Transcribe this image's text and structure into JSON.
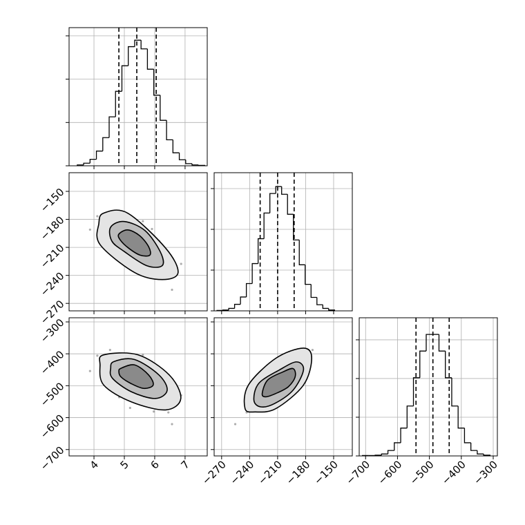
{
  "chart_data": {
    "type": "corner",
    "params": [
      {
        "lim": [
          3.18,
          7.73
        ],
        "ticks": [
          4,
          5,
          6,
          7
        ]
      },
      {
        "lim": [
          -278,
          -130
        ],
        "ticks": [
          {
            "value": -270,
            "label": "−270"
          },
          {
            "value": -240,
            "label": "−240"
          },
          {
            "value": -210,
            "label": "−210"
          },
          {
            "value": -180,
            "label": "−180"
          },
          {
            "value": -150,
            "label": "−150"
          }
        ]
      },
      {
        "lim": [
          -720,
          -287
        ],
        "ticks": [
          {
            "value": -700,
            "label": "−700"
          },
          {
            "value": -600,
            "label": "−600"
          },
          {
            "value": -500,
            "label": "−500"
          },
          {
            "value": -400,
            "label": "−400"
          },
          {
            "value": -300,
            "label": "−300"
          }
        ]
      }
    ],
    "samples": [
      [
        5.55,
        4.77,
        6.27,
        5.25,
        5.85,
        4.35,
        5.97,
        5.07,
        6.63,
        5.49,
        4.65,
        6.09,
        5.31,
        5.73,
        4.11,
        6.45,
        4.95,
        5.61,
        4.53,
        6.87,
        5.19,
        6.15,
        4.89,
        5.79,
        3.87,
        5.43,
        6.57,
        4.83,
        5.91,
        5.37
      ],
      [
        -218.4,
        -192.8,
        -212.6,
        -223.0,
        -215.1,
        -195.3,
        -240.3,
        -186.7,
        -227.7,
        -185.6,
        -209.4,
        -223.8,
        -201.1,
        -227.4,
        -176.6,
        -243.2,
        -201.8,
        -182.0,
        -172.6,
        -227.7,
        -233.5,
        -203.2,
        -187.8,
        -206.8,
        -191.0,
        -213.3,
        -255.4,
        -221.2,
        -190.3,
        -219.4
      ],
      [
        -517.7,
        -447.9,
        -490.4,
        -536.2,
        -503.7,
        -461.2,
        -580.9,
        -424.9,
        -533.0,
        -416.1,
        -501.2,
        -527.6,
        -466.8,
        -543.5,
        -405.8,
        -583.7,
        -473.7,
        -403.3,
        -388.0,
        -529.9,
        -569.6,
        -462.7,
        -430.6,
        -478.6,
        -453.9,
        -503.5,
        -620.4,
        -536.0,
        -425.3,
        -523.4
      ]
    ],
    "histograms": [
      {
        "bins": [
          3.45,
          3.66,
          3.87,
          4.08,
          4.29,
          4.5,
          4.71,
          4.92,
          5.13,
          5.34,
          5.55,
          5.76,
          5.97,
          6.18,
          6.39,
          6.6,
          6.81,
          7.02,
          7.23,
          7.44,
          7.65
        ],
        "counts": [
          0.02,
          0.06,
          0.15,
          0.34,
          0.65,
          1.13,
          1.72,
          2.31,
          2.75,
          2.9,
          2.7,
          2.23,
          1.63,
          1.05,
          0.6,
          0.3,
          0.14,
          0.05,
          0.02,
          0.01
        ],
        "ylim": [
          0,
          3.19
        ],
        "yticks": [
          0,
          1,
          2,
          3
        ],
        "quantiles": [
          4.82,
          5.41,
          6.05
        ]
      },
      {
        "bins": [
          -275,
          -268.7,
          -262.4,
          -256.1,
          -249.8,
          -243.5,
          -237.2,
          -230.9,
          -224.6,
          -218.3,
          -212,
          -205.7,
          -199.4,
          -193.1,
          -186.8,
          -180.5,
          -174.2,
          -167.9,
          -161.6,
          -155.3,
          -149
        ],
        "counts": [
          0.01,
          0.02,
          0.06,
          0.16,
          0.34,
          0.67,
          1.16,
          1.77,
          2.4,
          2.88,
          3.05,
          2.86,
          2.37,
          1.74,
          1.13,
          0.65,
          0.33,
          0.15,
          0.06,
          0.02
        ],
        "ylim": [
          0,
          3.39
        ],
        "yticks": [
          0,
          1,
          2,
          3
        ],
        "quantiles": [
          -228.7,
          -210,
          -192.3
        ]
      },
      {
        "bins": [
          -710,
          -690,
          -670,
          -650,
          -630,
          -610,
          -590,
          -570,
          -550,
          -530,
          -510,
          -490,
          -470,
          -450,
          -430,
          -410,
          -390,
          -370,
          -350,
          -330,
          -310
        ],
        "counts": [
          0.01,
          0.01,
          0.02,
          0.05,
          0.14,
          0.34,
          0.72,
          1.29,
          2.02,
          2.71,
          3.14,
          3.14,
          2.71,
          2.02,
          1.29,
          0.72,
          0.34,
          0.14,
          0.05,
          0.02
        ],
        "ylim": [
          0,
          3.57
        ],
        "yticks": [
          0,
          1,
          2,
          3
        ],
        "quantiles": [
          -542,
          -489,
          -438
        ]
      }
    ],
    "contours": [
      [
        [
          {
            "x": [
              4.32,
              5.11,
              6.36,
              6.77,
              6.25,
              5.34,
              4.2,
              4.16
            ],
            "y": [
              -173.3,
              -173.3,
              -210.8,
              -237.0,
              -244.5,
              -237.0,
              -207.0,
              -184.5
            ]
          },
          {
            "x": [
              4.55,
              5.0,
              5.68,
              6.18,
              6.25,
              5.73,
              5.0,
              4.59
            ],
            "y": [
              -188.3,
              -182.3,
              -192.0,
              -214.5,
              -229.5,
              -229.5,
              -214.5,
              -203.3
            ]
          },
          {
            "x": [
              4.82,
              5.11,
              5.5,
              5.8,
              5.84,
              5.52,
              5.14,
              4.86
            ],
            "y": [
              -195.8,
              -191.3,
              -197.3,
              -209.3,
              -218.3,
              -218.3,
              -210.8,
              -201.8
            ]
          }
        ]
      ],
      [
        [
          {
            "x": [
              4.32,
              5.45,
              6.48,
              6.86,
              6.36,
              5.23,
              4.32,
              4.2
            ],
            "y": [
              -403.2,
              -403.2,
              -466.3,
              -540.0,
              -575.8,
              -550.5,
              -497.9,
              -434.7
            ]
          },
          {
            "x": [
              4.66,
              5.34,
              6.14,
              6.41,
              6.02,
              5.23,
              4.61,
              4.55
            ],
            "y": [
              -424.2,
              -417.9,
              -466.3,
              -514.7,
              -540.0,
              -518.9,
              -476.8,
              -445.3
            ]
          },
          {
            "x": [
              4.89,
              5.34,
              5.8,
              5.95,
              5.64,
              5.23,
              4.89,
              4.82
            ],
            "y": [
              -445.3,
              -434.7,
              -466.3,
              -497.9,
              -508.4,
              -493.7,
              -472.6,
              -455.8
            ]
          }
        ],
        [
          {
            "x": [
              -244.9,
              -241.3,
              -211.8,
              -182.3,
              -173.5,
              -182.3,
              -211.8,
              -233.9
            ],
            "y": [
              -571.6,
              -497.9,
              -413.7,
              -382.1,
              -413.7,
              -497.9,
              -571.6,
              -582.1
            ]
          },
          {
            "x": [
              -235.4,
              -230.2,
              -208.1,
              -189.7,
              -182.3,
              -193.4,
              -213.3,
              -228.0
            ],
            "y": [
              -545.3,
              -492.6,
              -450.5,
              -425.3,
              -450.5,
              -513.7,
              -555.8,
              -566.3
            ]
          },
          {
            "x": [
              -226.5,
              -220.6,
              -204.4,
              -193.4,
              -191.2,
              -198.5,
              -211.8,
              -222.8
            ],
            "y": [
              -524.2,
              -482.1,
              -456.8,
              -446.3,
              -471.6,
              -503.2,
              -524.2,
              -534.7
            ]
          }
        ]
      ]
    ]
  }
}
